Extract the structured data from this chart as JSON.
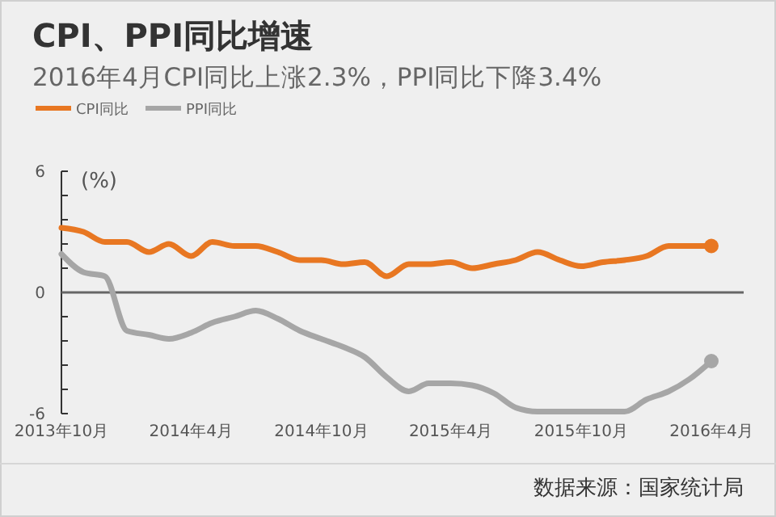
{
  "chart_data": {
    "type": "line",
    "title": "CPI、PPI同比增速",
    "subtitle": "2016年4月CPI同比上涨2.3%，PPI同比下降3.4%",
    "ylabel": "(%)",
    "x": [
      "2013-10",
      "2013-11",
      "2013-12",
      "2014-01",
      "2014-02",
      "2014-03",
      "2014-04",
      "2014-05",
      "2014-06",
      "2014-07",
      "2014-08",
      "2014-09",
      "2014-10",
      "2014-11",
      "2014-12",
      "2015-01",
      "2015-02",
      "2015-03",
      "2015-04",
      "2015-05",
      "2015-06",
      "2015-07",
      "2015-08",
      "2015-09",
      "2015-10",
      "2015-11",
      "2015-12",
      "2016-01",
      "2016-02",
      "2016-03",
      "2016-04"
    ],
    "series": [
      {
        "name": "CPI同比",
        "color": "#e87722",
        "values": [
          3.2,
          3.0,
          2.5,
          2.5,
          2.0,
          2.4,
          1.8,
          2.5,
          2.3,
          2.3,
          2.0,
          1.6,
          1.6,
          1.4,
          1.5,
          0.8,
          1.4,
          1.4,
          1.5,
          1.2,
          1.4,
          1.6,
          2.0,
          1.6,
          1.3,
          1.5,
          1.6,
          1.8,
          2.3,
          2.3,
          2.3
        ]
      },
      {
        "name": "PPI同比",
        "color": "#a6a6a6",
        "values": [
          1.9,
          1.0,
          0.8,
          -1.9,
          -2.1,
          -2.3,
          -2.0,
          -1.5,
          -1.2,
          -0.9,
          -1.3,
          -1.9,
          -2.3,
          -2.7,
          -3.2,
          -4.2,
          -4.9,
          -4.5,
          -4.5,
          -4.6,
          -5.0,
          -5.7,
          -5.9,
          -5.9,
          -5.9,
          -5.9,
          -5.9,
          -5.3,
          -4.9,
          -4.3,
          -3.4
        ]
      }
    ],
    "xlim": [
      "2013-10",
      "2016-04"
    ],
    "xticks": [
      {
        "value": "2013-10",
        "label": "2013年10月"
      },
      {
        "value": "2014-04",
        "label": "2014年4月"
      },
      {
        "value": "2014-10",
        "label": "2014年10月"
      },
      {
        "value": "2015-04",
        "label": "2015年4月"
      },
      {
        "value": "2015-10",
        "label": "2015年10月"
      },
      {
        "value": "2016-04",
        "label": "2016年4月"
      }
    ],
    "ylim": [
      -6,
      6
    ],
    "yticks": [
      -6,
      {
        "value": -4.8,
        "label": null
      },
      {
        "value": -3.6,
        "label": null
      },
      {
        "value": -2.4,
        "label": null
      },
      {
        "value": -1.2,
        "label": null
      },
      0,
      {
        "value": 1.2,
        "label": null
      },
      {
        "value": 2.4,
        "label": null
      },
      {
        "value": 3.6,
        "label": null
      },
      {
        "value": 4.8,
        "label": null
      },
      6
    ],
    "ref_lines": [
      {
        "axis": "y",
        "value": 0,
        "color": "#666666"
      }
    ],
    "legend": "top left",
    "annotations": [
      "数据来源：国家统计局"
    ]
  }
}
